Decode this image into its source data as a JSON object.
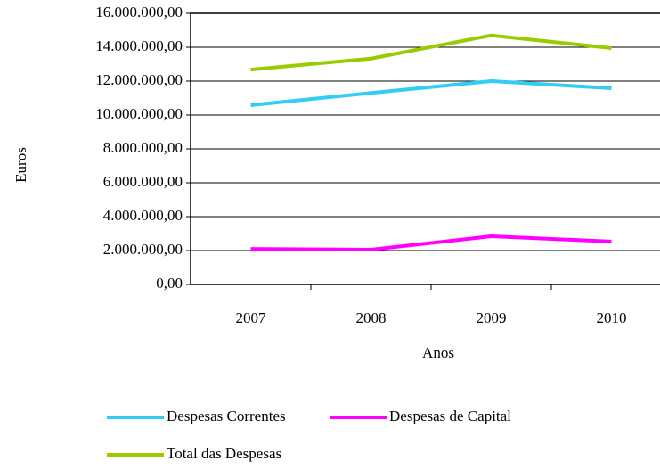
{
  "chart_data": {
    "type": "line",
    "x_label": "Anos",
    "y_label": "Euros",
    "categories": [
      "2007",
      "2008",
      "2009",
      "2010"
    ],
    "series": [
      {
        "name": "Despesas Correntes",
        "color": "#33ccf5",
        "values": [
          10580000,
          11300000,
          12000000,
          11580000
        ]
      },
      {
        "name": "Despesas de Capital",
        "color": "#ff00ff",
        "values": [
          2100000,
          2050000,
          2840000,
          2530000
        ]
      },
      {
        "name": "Total das Despesas",
        "color": "#99cc00",
        "values": [
          12680000,
          13330000,
          14700000,
          13950000
        ]
      }
    ],
    "ylim": [
      0,
      16000000
    ],
    "yticks": [
      {
        "value": 0,
        "label": "0,00"
      },
      {
        "value": 2000000,
        "label": "2.000.000,00"
      },
      {
        "value": 4000000,
        "label": "4.000.000,00"
      },
      {
        "value": 6000000,
        "label": "6.000.000,00"
      },
      {
        "value": 8000000,
        "label": "8.000.000,00"
      },
      {
        "value": 10000000,
        "label": "10.000.000,00"
      },
      {
        "value": 12000000,
        "label": "12.000.000,00"
      },
      {
        "value": 14000000,
        "label": "14.000.000,00"
      },
      {
        "value": 16000000,
        "label": "16.000.000,00"
      }
    ],
    "grid": true
  }
}
